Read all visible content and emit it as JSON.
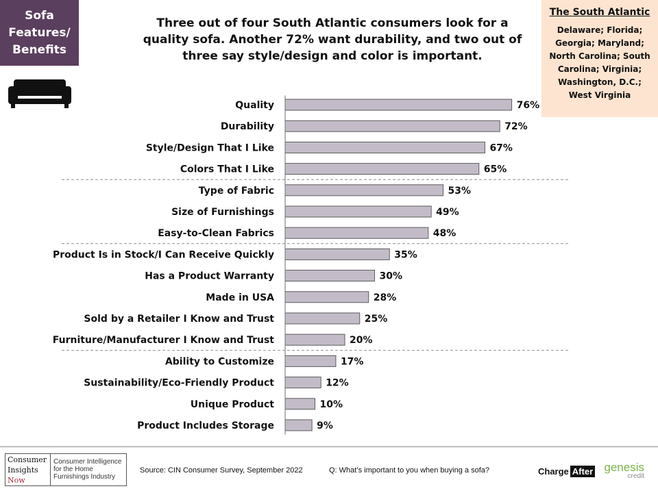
{
  "section_tag": {
    "lines": [
      "Sofa",
      "Features/",
      "Benefits"
    ]
  },
  "headline": "Three out of four South Atlantic consumers look for a quality sofa. Another 72% want durability, and two out of three say style/design and color is important.",
  "region": {
    "title": "The South Atlantic",
    "states_lines": [
      "Delaware; Florida;",
      "Georgia; Maryland;",
      "North Carolina; South",
      "Carolina; Virginia;",
      "Washington, D.C.;",
      "West Virginia"
    ]
  },
  "chart_data": {
    "type": "bar",
    "orientation": "horizontal",
    "categories": [
      "Quality",
      "Durability",
      "Style/Design That I Like",
      "Colors That I Like",
      "Type of Fabric",
      "Size of Furnishings",
      "Easy-to-Clean Fabrics",
      "Product Is in Stock/I Can Receive Quickly",
      "Has a Product Warranty",
      "Made in USA",
      "Sold by a Retailer I Know and Trust",
      "Furniture/Manufacturer I Know and Trust",
      "Ability to Customize",
      "Sustainability/Eco-Friendly Product",
      "Unique Product",
      "Product Includes Storage"
    ],
    "values": [
      76,
      72,
      67,
      65,
      53,
      49,
      48,
      35,
      30,
      28,
      25,
      20,
      17,
      12,
      10,
      9
    ],
    "value_labels": [
      "76%",
      "72%",
      "67%",
      "65%",
      "53%",
      "49%",
      "48%",
      "35%",
      "30%",
      "28%",
      "25%",
      "20%",
      "17%",
      "12%",
      "10%",
      "9%"
    ],
    "unit": "%",
    "xlim": [
      0,
      100
    ],
    "group_dividers_after_index": [
      3,
      6,
      11
    ],
    "bar_color": "#c3bcc8",
    "bar_border_color": "#5a5a5a"
  },
  "footer": {
    "logo_mark_lines": [
      "Consumer",
      "Insights",
      "Now"
    ],
    "logo_text_lines": [
      "Consumer Intelligence",
      "for the Home",
      "Furnishings Industry"
    ],
    "source": "Source: CIN Consumer Survey, September  2022",
    "question": "Q: What’s important to you when buying a sofa?",
    "chargeafter_charge": "Charge",
    "chargeafter_after": "After",
    "genesis_word": "genesis",
    "genesis_sub": "credit"
  }
}
